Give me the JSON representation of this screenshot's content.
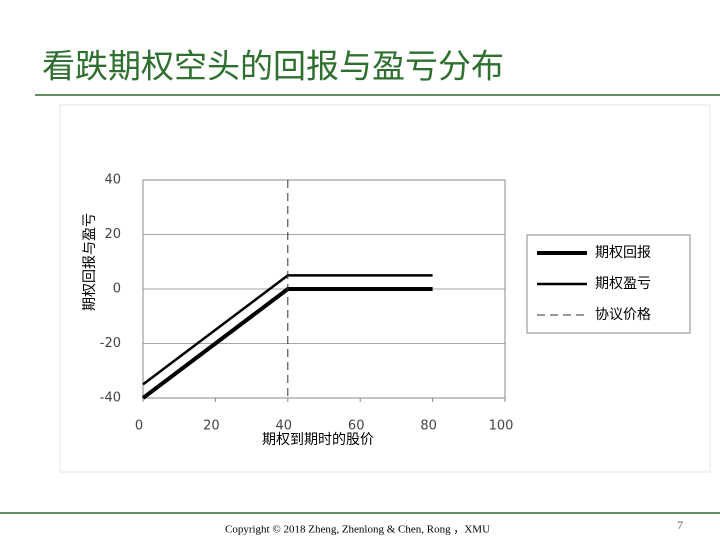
{
  "slide": {
    "title": "看跌期权空头的回报与盈亏分布",
    "footer": "Copyright © 2018 Zheng, Zhenlong & Chen, Rong ，XMU",
    "page_number": "7"
  },
  "chart_data": {
    "type": "line",
    "x_label": "期权到期时的股价",
    "y_label": "期权回报与盈亏",
    "xlim": [
      0,
      100
    ],
    "xticks": [
      0,
      20,
      40,
      60,
      80,
      100
    ],
    "ylim": [
      -40,
      40
    ],
    "yticks": [
      -40,
      -20,
      0,
      20,
      40
    ],
    "grid": true,
    "legend": "right",
    "series": [
      {
        "name": "期权回报",
        "color": "#000000",
        "x": [
          0,
          40,
          80
        ],
        "values": [
          -40,
          0,
          0
        ],
        "width": 4,
        "dashed": false
      },
      {
        "name": "期权盈亏",
        "color": "#000000",
        "x": [
          0,
          40,
          80
        ],
        "values": [
          -35,
          5,
          5
        ],
        "width": 2.5,
        "dashed": false
      },
      {
        "name": "协议价格",
        "color": "#333333",
        "x": [
          40,
          40
        ],
        "values": [
          40,
          -40
        ],
        "width": 1,
        "dashed": true
      }
    ]
  }
}
